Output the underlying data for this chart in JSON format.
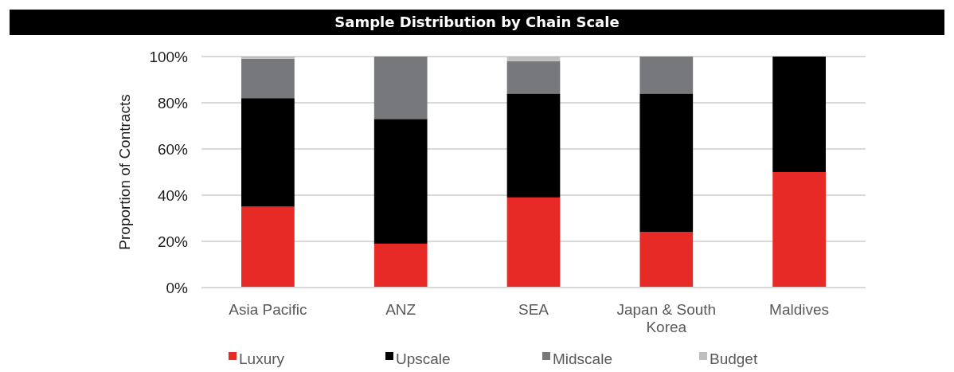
{
  "chart_data": {
    "type": "bar",
    "title": "Sample Distribution by Chain Scale",
    "ylabel": "Proportion of Contracts",
    "stacked": true,
    "categories": [
      "Asia Pacific",
      "ANZ",
      "SEA",
      "Japan & South Korea",
      "Maldives"
    ],
    "series": [
      {
        "name": "Luxury",
        "color": "#e82a27",
        "values": [
          35,
          19,
          39,
          24,
          50
        ]
      },
      {
        "name": "Upscale",
        "color": "#000000",
        "values": [
          47,
          54,
          45,
          60,
          50
        ]
      },
      {
        "name": "Midscale",
        "color": "#76787c",
        "values": [
          17,
          27,
          14,
          16,
          0
        ]
      },
      {
        "name": "Budget",
        "color": "#bfbfbf",
        "values": [
          1,
          0,
          2,
          0,
          0
        ]
      }
    ],
    "ylim": [
      0,
      100
    ],
    "yticks": [
      {
        "value": 0,
        "label": "0%"
      },
      {
        "value": 20,
        "label": "20%"
      },
      {
        "value": 40,
        "label": "40%"
      },
      {
        "value": 60,
        "label": "60%"
      },
      {
        "value": 80,
        "label": "80%"
      },
      {
        "value": 100,
        "label": "100%"
      }
    ],
    "grid": "y",
    "legend": "bottom"
  }
}
